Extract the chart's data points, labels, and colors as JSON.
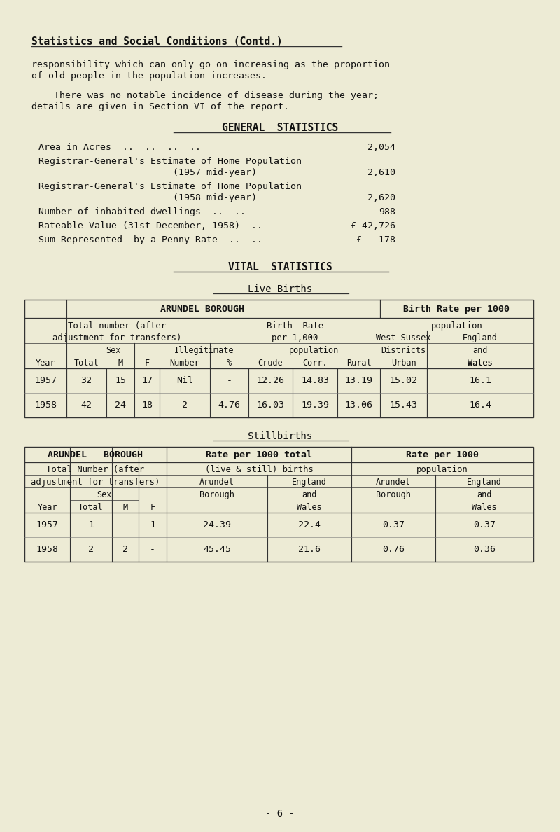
{
  "bg_color": "#edebd5",
  "text_color": "#1a1a1a",
  "title": "Statistics and Social Conditions (Contd.)",
  "para1_line1": "responsibility which can only go on increasing as the proportion",
  "para1_line2": "of old people in the population increases.",
  "para2_line1": "    There was no notable incidence of disease during the year;",
  "para2_line2": "details are given in Section VI of the report.",
  "gen_stats_title": "GENERAL  STATISTICS",
  "vital_stats_title": "VITAL  STATISTICS",
  "live_births_title": "Live Births",
  "stillbirths_title": "Stillbirths",
  "page_num": "- 6 -",
  "lb_data": [
    [
      "1957",
      "32",
      "15",
      "17",
      "Nil",
      "-",
      "12.26",
      "14.83",
      "13.19",
      "15.02",
      "16.1"
    ],
    [
      "1958",
      "42",
      "24",
      "18",
      "2",
      "4.76",
      "16.03",
      "19.39",
      "13.06",
      "15.43",
      "16.4"
    ]
  ],
  "sb_data": [
    [
      "1957",
      "1",
      "-",
      "1",
      "24.39",
      "22.4",
      "0.37",
      "0.37"
    ],
    [
      "1958",
      "2",
      "2",
      "-",
      "45.45",
      "21.6",
      "0.76",
      "0.36"
    ]
  ]
}
